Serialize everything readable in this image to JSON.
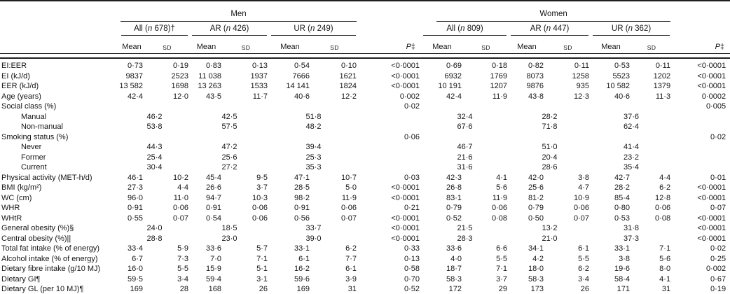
{
  "table": {
    "header": {
      "men": {
        "label": "Men",
        "groups": [
          {
            "pre": "All (",
            "n": "n",
            "post": " 678)†"
          },
          {
            "pre": "AR (",
            "n": "n",
            "post": " 426)"
          },
          {
            "pre": "UR (",
            "n": "n",
            "post": " 249)"
          }
        ]
      },
      "women": {
        "label": "Women",
        "groups": [
          {
            "pre": "All (",
            "n": "n",
            "post": " 809)"
          },
          {
            "pre": "AR (",
            "n": "n",
            "post": " 447)"
          },
          {
            "pre": "UR (",
            "n": "n",
            "post": " 362)"
          }
        ]
      },
      "mean_label": "Mean",
      "sd_label": "SD",
      "p_label": "P",
      "p_mark": "‡"
    },
    "rows": [
      {
        "label": "EI:EER",
        "type": "data",
        "men": [
          "0·73",
          "0·19",
          "0·83",
          "0·13",
          "0·54",
          "0·10"
        ],
        "p1": "<0·0001",
        "women": [
          "0·69",
          "0·18",
          "0·82",
          "0·11",
          "0·53",
          "0·11"
        ],
        "p2": "<0·0001"
      },
      {
        "label": "EI (kJ/d)",
        "type": "data",
        "men": [
          "9837",
          "2523",
          "11 038",
          "1937",
          "7666",
          "1621"
        ],
        "p1": "<0·0001",
        "women": [
          "6932",
          "1769",
          "8073",
          "1258",
          "5523",
          "1202"
        ],
        "p2": "<0·0001"
      },
      {
        "label": "EER (kJ/d)",
        "type": "data",
        "men": [
          "13 582",
          "1698",
          "13 263",
          "1533",
          "14 141",
          "1824"
        ],
        "p1": "<0·0001",
        "women": [
          "10 191",
          "1207",
          "9876",
          "935",
          "10 582",
          "1379"
        ],
        "p2": "<0·0001"
      },
      {
        "label": "Age (years)",
        "type": "data",
        "men": [
          "42·4",
          "12·0",
          "43·5",
          "11·7",
          "40·6",
          "12·2"
        ],
        "p1": "0·002",
        "women": [
          "42·4",
          "11·9",
          "43·8",
          "12·3",
          "40·6",
          "11·3"
        ],
        "p2": "0·0002"
      },
      {
        "label": "Social class (%)",
        "type": "section",
        "p1": "0·02",
        "p2": "0·005"
      },
      {
        "label": "Manual",
        "type": "span",
        "indent": true,
        "men": [
          "46·2",
          "42·5",
          "51·8"
        ],
        "p1": "",
        "women": [
          "32·4",
          "28·2",
          "37·6"
        ],
        "p2": ""
      },
      {
        "label": "Non-manual",
        "type": "span",
        "indent": true,
        "men": [
          "53·8",
          "57·5",
          "48·2"
        ],
        "p1": "",
        "women": [
          "67·6",
          "71·8",
          "62·4"
        ],
        "p2": ""
      },
      {
        "label": "Smoking status (%)",
        "type": "section",
        "p1": "0·06",
        "p2": "0·02"
      },
      {
        "label": "Never",
        "type": "span",
        "indent": true,
        "men": [
          "44·3",
          "47·2",
          "39·4"
        ],
        "p1": "",
        "women": [
          "46·7",
          "51·0",
          "41·4"
        ],
        "p2": ""
      },
      {
        "label": "Former",
        "type": "span",
        "indent": true,
        "men": [
          "25·4",
          "25·6",
          "25·3"
        ],
        "p1": "",
        "women": [
          "21·6",
          "20·4",
          "23·2"
        ],
        "p2": ""
      },
      {
        "label": "Current",
        "type": "span",
        "indent": true,
        "men": [
          "30·4",
          "27·2",
          "35·3"
        ],
        "p1": "",
        "women": [
          "31·6",
          "28·6",
          "35·4"
        ],
        "p2": ""
      },
      {
        "label": "Physical activity (MET-h/d)",
        "type": "data",
        "men": [
          "46·1",
          "10·2",
          "45·4",
          "9·5",
          "47·1",
          "10·7"
        ],
        "p1": "0·03",
        "women": [
          "42·3",
          "4·1",
          "42·0",
          "3·8",
          "42·7",
          "4·4"
        ],
        "p2": "0·01"
      },
      {
        "label": "BMI (kg/m²)",
        "type": "data",
        "men": [
          "27·3",
          "4·4",
          "26·6",
          "3·7",
          "28·5",
          "5·0"
        ],
        "p1": "<0·0001",
        "women": [
          "26·8",
          "5·6",
          "25·6",
          "4·7",
          "28·2",
          "6·2"
        ],
        "p2": "<0·0001"
      },
      {
        "label": "WC (cm)",
        "type": "data",
        "men": [
          "96·0",
          "11·0",
          "94·7",
          "10·3",
          "98·2",
          "11·9"
        ],
        "p1": "<0·0001",
        "women": [
          "83·1",
          "11·9",
          "81·2",
          "10·9",
          "85·4",
          "12·8"
        ],
        "p2": "<0·0001"
      },
      {
        "label": "WHR",
        "type": "data",
        "men": [
          "0·91",
          "0·06",
          "0·91",
          "0·06",
          "0·91",
          "0·06"
        ],
        "p1": "0·21",
        "women": [
          "0·79",
          "0·06",
          "0·79",
          "0·06",
          "0·80",
          "0·06"
        ],
        "p2": "0·07"
      },
      {
        "label": "WHtR",
        "type": "data",
        "men": [
          "0·55",
          "0·07",
          "0·54",
          "0·06",
          "0·56",
          "0·07"
        ],
        "p1": "<0·0001",
        "women": [
          "0·52",
          "0·08",
          "0·50",
          "0·07",
          "0·53",
          "0·08"
        ],
        "p2": "<0·0001"
      },
      {
        "label": "General obesity (%)§",
        "type": "span",
        "men": [
          "24·0",
          "18·5",
          "33·7"
        ],
        "p1": "<0·0001",
        "women": [
          "21·5",
          "13·2",
          "31·8"
        ],
        "p2": "<0·0001"
      },
      {
        "label": "Central obesity (%)||",
        "type": "span",
        "men": [
          "28·8",
          "23·0",
          "39·0"
        ],
        "p1": "<0·0001",
        "women": [
          "28·3",
          "21·0",
          "37·3"
        ],
        "p2": "<0·0001"
      },
      {
        "label": "Total fat intake (% of energy)",
        "type": "data",
        "men": [
          "33·4",
          "5·9",
          "33·6",
          "5·7",
          "33·1",
          "6·2"
        ],
        "p1": "0·33",
        "women": [
          "33·6",
          "6·6",
          "34·1",
          "6·1",
          "33·1",
          "7·1"
        ],
        "p2": "0·02"
      },
      {
        "label": "Alcohol intake (% of energy)",
        "type": "data",
        "men": [
          "6·7",
          "7·3",
          "7·0",
          "7·1",
          "6·1",
          "7·7"
        ],
        "p1": "0·13",
        "women": [
          "4·0",
          "5·5",
          "4·2",
          "5·5",
          "3·8",
          "5·6"
        ],
        "p2": "0·25"
      },
      {
        "label": "Dietary fibre intake (g/10 MJ)",
        "type": "data",
        "men": [
          "16·0",
          "5·5",
          "15·9",
          "5·1",
          "16·2",
          "6·1"
        ],
        "p1": "0·58",
        "women": [
          "18·7",
          "7·1",
          "18·0",
          "6·2",
          "19·6",
          "8·0"
        ],
        "p2": "0·002"
      },
      {
        "label": "Dietary GI¶",
        "type": "data",
        "men": [
          "59·5",
          "3·4",
          "59·4",
          "3·1",
          "59·6",
          "3·9"
        ],
        "p1": "0·70",
        "women": [
          "58·3",
          "3·7",
          "58·3",
          "3·4",
          "58·4",
          "4·1"
        ],
        "p2": "0·67"
      },
      {
        "label": "Dietary GL (per 10 MJ)¶",
        "type": "data",
        "men": [
          "169",
          "28",
          "168",
          "26",
          "169",
          "31"
        ],
        "p1": "0·52",
        "women": [
          "172",
          "29",
          "173",
          "26",
          "171",
          "31"
        ],
        "p2": "0·19"
      }
    ]
  }
}
